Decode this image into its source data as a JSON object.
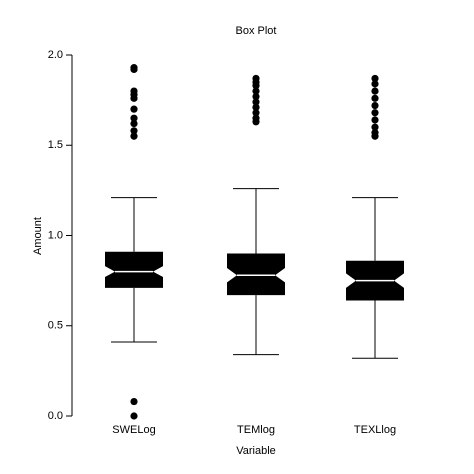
{
  "chart_data": {
    "type": "box",
    "title": "Box Plot",
    "x_label": "Variable",
    "y_label": "Amount",
    "categories": [
      "SWELog",
      "TEMlog",
      "TEXLlog"
    ],
    "color": "#000000",
    "boxes": [
      {
        "whisker_low": 0.41,
        "q1": 0.71,
        "notch_low": 0.77,
        "median": 0.8,
        "notch_high": 0.83,
        "q3": 0.91,
        "whisker_high": 1.21,
        "outliers": [
          1.93,
          1.92,
          1.8,
          1.78,
          1.76,
          1.7,
          1.65,
          1.62,
          1.58,
          1.55,
          0.08,
          0.0
        ]
      },
      {
        "whisker_low": 0.34,
        "q1": 0.67,
        "notch_low": 0.74,
        "median": 0.78,
        "notch_high": 0.82,
        "q3": 0.9,
        "whisker_high": 1.26,
        "outliers": [
          1.87,
          1.85,
          1.83,
          1.8,
          1.77,
          1.74,
          1.71,
          1.68,
          1.65,
          1.63
        ]
      },
      {
        "whisker_low": 0.32,
        "q1": 0.64,
        "notch_low": 0.71,
        "median": 0.75,
        "notch_high": 0.79,
        "q3": 0.86,
        "whisker_high": 1.21,
        "outliers": [
          1.87,
          1.84,
          1.8,
          1.76,
          1.72,
          1.68,
          1.64,
          1.6,
          1.57,
          1.55
        ]
      }
    ],
    "ylim": [
      0,
      2
    ],
    "yticks": [
      {
        "value": 0,
        "label": "0.0"
      },
      0.5,
      {
        "value": 1,
        "label": "1.0"
      },
      1.5,
      {
        "value": 2,
        "label": "2.0"
      }
    ]
  }
}
